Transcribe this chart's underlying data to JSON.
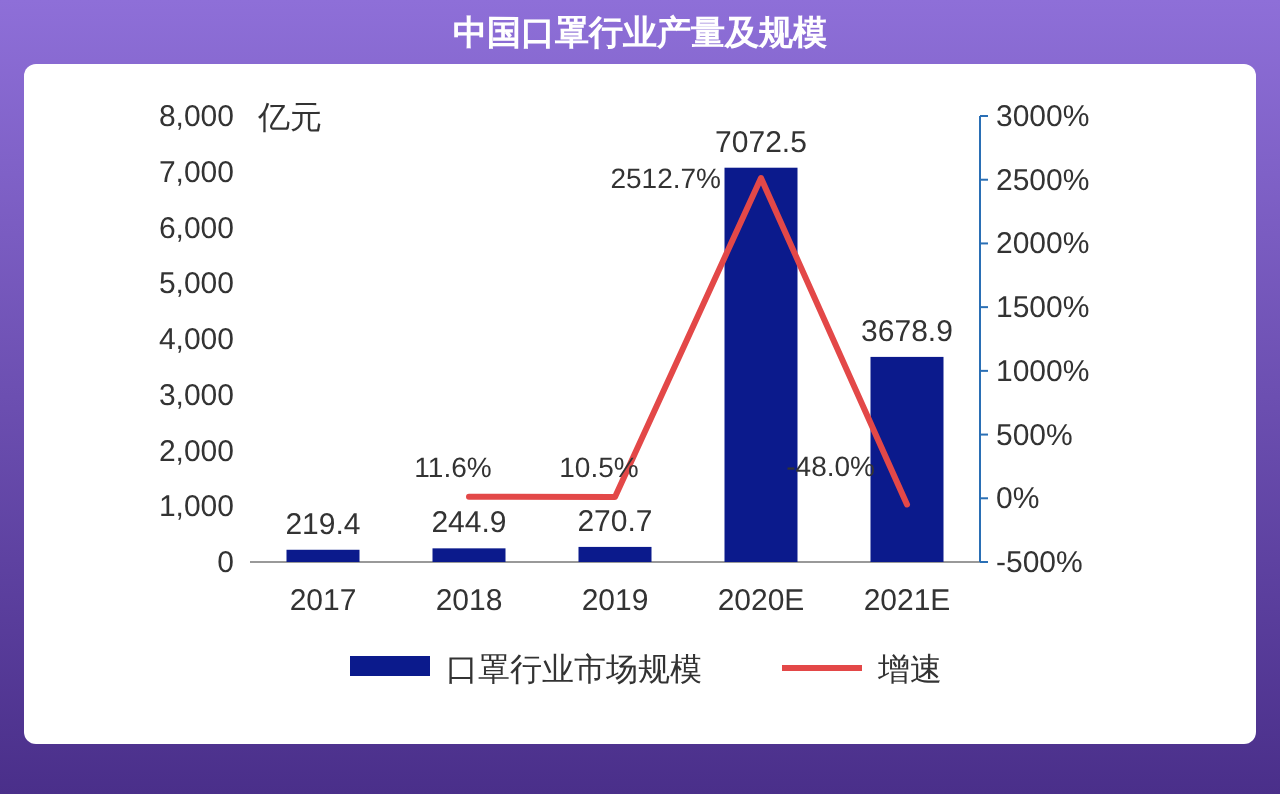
{
  "chart_data": {
    "type": "bar",
    "title": "中国口罩行业产量及规模",
    "ylabel": "亿元",
    "categories": [
      "2017",
      "2018",
      "2019",
      "2020E",
      "2021E"
    ],
    "series": [
      {
        "name": "口罩行业市场规模",
        "color": "#0b1a8c",
        "values": [
          219.4,
          244.9,
          270.7,
          7072.5,
          3678.9
        ],
        "value_labels": [
          "219.4",
          "244.9",
          "270.7",
          "7072.5",
          "3678.9"
        ]
      },
      {
        "name": "增速",
        "type": "line",
        "axis": "y2",
        "color": "#e34848",
        "values": [
          null,
          11.6,
          10.5,
          2512.7,
          -48.0
        ],
        "value_labels": [
          null,
          "11.6%",
          "10.5%",
          "2512.7%",
          "-48.0%"
        ]
      }
    ],
    "ylim": [
      0,
      8000
    ],
    "yticks": [
      0,
      {
        "value": 1000,
        "label": "1,000"
      },
      {
        "value": 2000,
        "label": "2,000"
      },
      {
        "value": 3000,
        "label": "3,000"
      },
      {
        "value": 4000,
        "label": "4,000"
      },
      {
        "value": 5000,
        "label": "5,000"
      },
      {
        "value": 6000,
        "label": "6,000"
      },
      {
        "value": 7000,
        "label": "7,000"
      },
      {
        "value": 8000,
        "label": "8,000"
      }
    ],
    "y2lim": [
      -500,
      3000
    ],
    "y2ticks": [
      {
        "value": -500,
        "label": "-500%"
      },
      {
        "value": 0,
        "label": "0%"
      },
      {
        "value": 500,
        "label": "500%"
      },
      {
        "value": 1000,
        "label": "1000%"
      },
      {
        "value": 1500,
        "label": "1500%"
      },
      {
        "value": 2000,
        "label": "2000%"
      },
      {
        "value": 2500,
        "label": "2500%"
      },
      {
        "value": 3000,
        "label": "3000%"
      }
    ],
    "legend": "bottom",
    "marker": "none",
    "line_style": "solid"
  }
}
